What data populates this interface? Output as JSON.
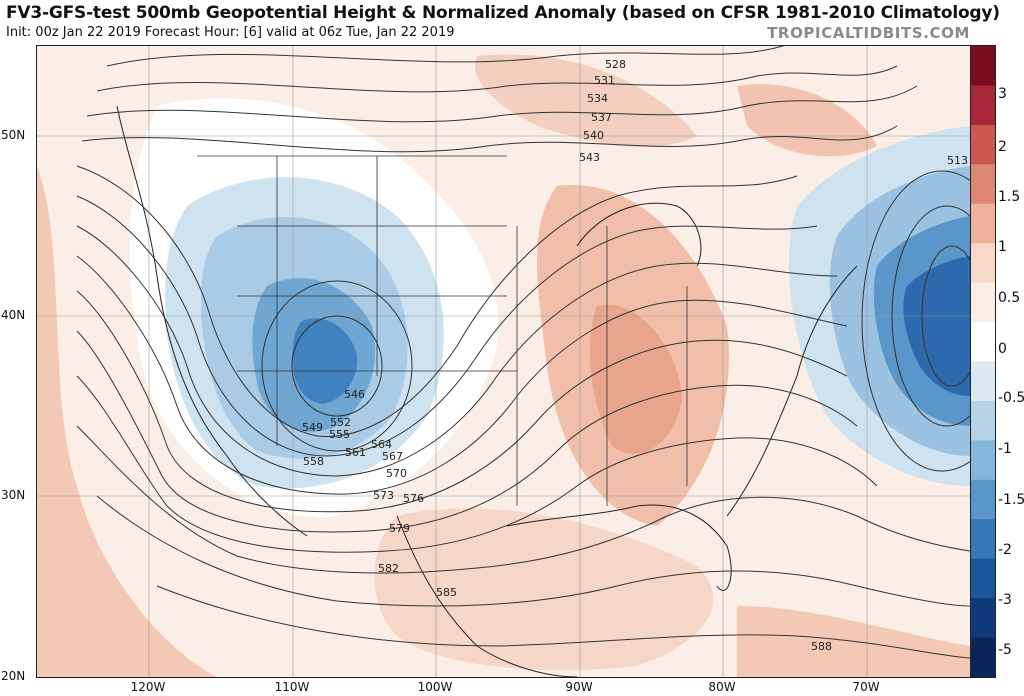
{
  "header": {
    "title": "FV3-GFS-test 500mb Geopotential Height & Normalized Anomaly (based on CFSR 1981-2010 Climatology)",
    "subtitle": "Init: 00z Jan 22 2019   Forecast Hour: [6]   valid at 06z Tue, Jan 22 2019",
    "brand": "TROPICALTIDBITS.COM"
  },
  "axes": {
    "lat_labels": [
      "50N",
      "40N",
      "30N",
      "20N"
    ],
    "lon_labels": [
      "120W",
      "110W",
      "100W",
      "90W",
      "80W",
      "70W"
    ]
  },
  "colorbar": {
    "labels": [
      "3",
      "2",
      "1.5",
      "1",
      "0.5",
      "0",
      "-0.5",
      "-1",
      "-1.5",
      "-2",
      "-3",
      "-5"
    ],
    "colors": [
      "#7a0c20",
      "#a8283a",
      "#c9564f",
      "#de8675",
      "#eeb29c",
      "#f7d8ca",
      "#fbeee6",
      "#ffffff",
      "#dbe9f3",
      "#b6d3e9",
      "#86b6db",
      "#5a96c9",
      "#3677b5",
      "#1d559a",
      "#10397a",
      "#0a2558"
    ]
  },
  "contour_labels": [
    "513",
    "528",
    "531",
    "534",
    "537",
    "540",
    "543",
    "546",
    "549",
    "552",
    "555",
    "558",
    "561",
    "564",
    "567",
    "570",
    "573",
    "576",
    "579",
    "582",
    "585",
    "588"
  ]
}
